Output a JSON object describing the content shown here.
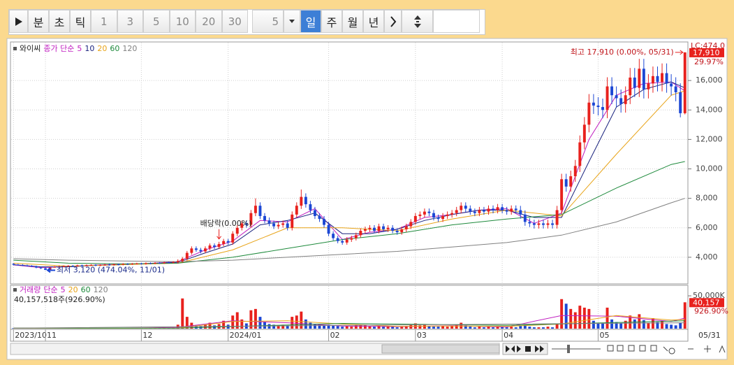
{
  "toolbar": {
    "buttons": [
      "분",
      "초",
      "틱",
      "1",
      "3",
      "5",
      "10",
      "20",
      "30"
    ],
    "period_value": "5",
    "period_buttons": [
      "일",
      "주",
      "월",
      "년"
    ]
  },
  "chart_data": {
    "type": "candlestick",
    "name": "와이씨",
    "ma_prefix": "종가 단순",
    "categories": [
      "2023/10",
      null,
      null,
      null,
      null,
      null,
      null,
      "11",
      null,
      null,
      null,
      null,
      null,
      null,
      null,
      null,
      null,
      null,
      null,
      null,
      null,
      null,
      null,
      null,
      null,
      null,
      null,
      null,
      "12",
      null,
      null,
      null,
      null,
      null,
      null,
      null,
      null,
      null,
      null,
      null,
      null,
      null,
      null,
      null,
      null,
      null,
      null,
      "2024/01",
      null,
      null,
      null,
      null,
      null,
      null,
      null,
      null,
      null,
      null,
      null,
      null,
      null,
      null,
      null,
      null,
      null,
      null,
      null,
      null,
      null,
      "02",
      null,
      null,
      null,
      null,
      null,
      null,
      null,
      null,
      null,
      null,
      null,
      null,
      null,
      null,
      null,
      null,
      null,
      null,
      "03",
      null,
      null,
      null,
      null,
      null,
      null,
      null,
      null,
      null,
      null,
      null,
      null,
      null,
      null,
      null,
      null,
      null,
      null,
      "04",
      null,
      null,
      null,
      null,
      null,
      null,
      null,
      null,
      null,
      null,
      null,
      null,
      null,
      null,
      null,
      null,
      null,
      null,
      null,
      null,
      "05",
      null,
      null,
      null,
      null,
      null,
      null,
      null,
      null,
      null,
      null,
      null,
      null,
      null,
      null,
      null,
      null,
      null,
      null,
      "05/31"
    ],
    "open": [
      3550,
      3500,
      3480,
      3450,
      3420,
      3380,
      3300,
      3250,
      3150,
      3300,
      3350,
      3380,
      3400,
      3420,
      3400,
      3450,
      3430,
      3460,
      3480,
      3450,
      3470,
      3500,
      3480,
      3520,
      3500,
      3550,
      3530,
      3560,
      3580,
      3550,
      3600,
      3580,
      3620,
      3600,
      3650,
      3630,
      3680,
      3750,
      3900,
      4300,
      4600,
      4500,
      4400,
      4600,
      4800,
      4700,
      4900,
      5100,
      5000,
      5600,
      6000,
      6300,
      6200,
      7000,
      7500,
      6800,
      6500,
      6300,
      6100,
      6200,
      6300,
      6000,
      6900,
      7500,
      8100,
      7600,
      7200,
      6800,
      6600,
      6200,
      5600,
      5300,
      5100,
      5000,
      5200,
      5300,
      5500,
      5800,
      5900,
      6000,
      5800,
      6100,
      5900,
      6000,
      5800,
      5700,
      5900,
      6100,
      6400,
      6800,
      6900,
      7100,
      7000,
      6700,
      6600,
      6800,
      6900,
      7000,
      7200,
      7500,
      7300,
      7100,
      7000,
      7200,
      7100,
      7300,
      7200,
      7400,
      7200,
      7100,
      7300,
      7200,
      6900,
      6400,
      6300,
      6200,
      6300,
      6200,
      6300,
      6200,
      7200,
      9300,
      8800,
      9500,
      10200,
      11800,
      13000,
      14500,
      14300,
      14200,
      14000,
      15600,
      15000,
      14800,
      14400,
      15000,
      16200,
      15500,
      16800,
      15400,
      15800,
      16300,
      15900,
      16500,
      15800,
      15600,
      15200,
      13780
    ],
    "high": [
      3600,
      3550,
      3530,
      3500,
      3470,
      3430,
      3350,
      3300,
      3350,
      3400,
      3430,
      3450,
      3470,
      3470,
      3500,
      3500,
      3510,
      3530,
      3530,
      3520,
      3550,
      3550,
      3570,
      3570,
      3600,
      3600,
      3610,
      3630,
      3630,
      3650,
      3650,
      3670,
      3670,
      3700,
      3700,
      3730,
      3860,
      4020,
      4430,
      4740,
      4740,
      4640,
      4740,
      4940,
      4940,
      5050,
      5250,
      5250,
      5770,
      6180,
      6490,
      6490,
      7210,
      8000,
      7730,
      7000,
      6700,
      6490,
      6390,
      6490,
      6490,
      7110,
      7730,
      8600,
      8340,
      7830,
      7420,
      7000,
      6800,
      6390,
      5770,
      5460,
      5250,
      5360,
      5460,
      5670,
      5970,
      6080,
      6180,
      6180,
      6280,
      6280,
      6180,
      6180,
      5970,
      6080,
      6280,
      6590,
      7000,
      7110,
      7310,
      7310,
      7210,
      6900,
      7000,
      7110,
      7210,
      7420,
      7730,
      7730,
      7520,
      7310,
      7420,
      7420,
      7520,
      7520,
      7620,
      7620,
      7420,
      7520,
      7520,
      7490,
      7180,
      6660,
      6550,
      6550,
      6550,
      6550,
      6550,
      7490,
      9670,
      9670,
      9880,
      10610,
      12270,
      13520,
      15080,
      15080,
      14870,
      14770,
      16220,
      16220,
      15600,
      15390,
      15600,
      16850,
      16850,
      17470,
      17470,
      16430,
      16950,
      16950,
      17160,
      17160,
      16430,
      16220,
      15810,
      17910
    ],
    "low": [
      3450,
      3430,
      3400,
      3370,
      3330,
      3250,
      3200,
      3120,
      3130,
      3300,
      3300,
      3330,
      3350,
      3350,
      3350,
      3380,
      3380,
      3410,
      3400,
      3400,
      3420,
      3430,
      3430,
      3450,
      3450,
      3480,
      3480,
      3510,
      3500,
      3500,
      3530,
      3530,
      3550,
      3550,
      3580,
      3580,
      3570,
      3640,
      3780,
      4170,
      4370,
      4270,
      4270,
      4460,
      4560,
      4560,
      4750,
      4850,
      4850,
      5430,
      5820,
      6010,
      6010,
      6790,
      6600,
      6310,
      6110,
      5920,
      5920,
      6010,
      5820,
      5820,
      6690,
      7280,
      7370,
      6980,
      6600,
      6400,
      6010,
      5430,
      5140,
      4950,
      4850,
      4850,
      5040,
      5140,
      5340,
      5630,
      5720,
      5630,
      5630,
      5720,
      5720,
      5630,
      5530,
      5530,
      5720,
      5920,
      6210,
      6600,
      6690,
      6790,
      6500,
      6400,
      6400,
      6600,
      6690,
      6790,
      6980,
      7080,
      6890,
      6790,
      6790,
      6890,
      6890,
      6980,
      6980,
      6980,
      6890,
      6890,
      6980,
      6620,
      6140,
      6050,
      5950,
      5950,
      5950,
      5950,
      5950,
      5950,
      6910,
      8450,
      8450,
      9120,
      9790,
      11330,
      12480,
      13730,
      13630,
      13440,
      13440,
      14400,
      14210,
      13820,
      13820,
      14400,
      14880,
      14880,
      14780,
      14780,
      15170,
      15260,
      15260,
      15170,
      14980,
      14590,
      13500,
      13700
    ],
    "close": [
      3500,
      3480,
      3450,
      3420,
      3380,
      3300,
      3250,
      3150,
      3300,
      3350,
      3380,
      3400,
      3420,
      3400,
      3450,
      3430,
      3460,
      3480,
      3450,
      3470,
      3500,
      3480,
      3520,
      3500,
      3550,
      3530,
      3560,
      3580,
      3550,
      3600,
      3580,
      3620,
      3600,
      3650,
      3630,
      3680,
      3750,
      3900,
      4300,
      4600,
      4500,
      4400,
      4600,
      4800,
      4700,
      4900,
      5100,
      5000,
      5600,
      6000,
      6300,
      6200,
      7000,
      7500,
      6800,
      6500,
      6300,
      6100,
      6200,
      6300,
      6000,
      6900,
      7500,
      8100,
      7600,
      7200,
      6800,
      6600,
      6200,
      5600,
      5300,
      5100,
      5000,
      5200,
      5300,
      5500,
      5800,
      5900,
      6000,
      5800,
      6100,
      5900,
      6000,
      5800,
      5700,
      5900,
      6100,
      6400,
      6800,
      6900,
      7100,
      7000,
      6700,
      6600,
      6800,
      6900,
      7000,
      7200,
      7500,
      7300,
      7100,
      7000,
      7200,
      7100,
      7300,
      7200,
      7400,
      7200,
      7100,
      7300,
      7200,
      6900,
      6400,
      6300,
      6200,
      6300,
      6200,
      6300,
      6200,
      7200,
      9300,
      8800,
      9500,
      10200,
      11800,
      13000,
      14500,
      14300,
      14200,
      14000,
      15600,
      15000,
      14800,
      14400,
      15000,
      16200,
      15500,
      16800,
      15400,
      15800,
      16300,
      15900,
      16500,
      15800,
      15600,
      15200,
      13780,
      17910
    ],
    "volume": [
      800,
      600,
      500,
      700,
      500,
      900,
      600,
      1200,
      900,
      500,
      400,
      600,
      500,
      400,
      500,
      600,
      400,
      500,
      700,
      500,
      400,
      600,
      500,
      700,
      500,
      400,
      600,
      800,
      500,
      400,
      700,
      600,
      500,
      900,
      700,
      1200,
      6000,
      46000,
      18000,
      9000,
      5000,
      4000,
      6000,
      9000,
      5000,
      7000,
      12000,
      6000,
      20000,
      25000,
      14000,
      8000,
      28000,
      30000,
      18000,
      10000,
      7000,
      6000,
      5000,
      6000,
      5000,
      18000,
      20000,
      26000,
      14000,
      9000,
      7000,
      6000,
      5000,
      6000,
      5000,
      4000,
      3000,
      4000,
      3000,
      5000,
      6000,
      5000,
      4000,
      3000,
      5000,
      3000,
      4000,
      3000,
      2000,
      3000,
      4000,
      6000,
      8000,
      5000,
      7000,
      4000,
      3000,
      3000,
      4000,
      3000,
      4000,
      6000,
      9000,
      5000,
      3000,
      2000,
      3000,
      2000,
      3000,
      2000,
      4000,
      3000,
      2000,
      3000,
      2000,
      4000,
      6000,
      3000,
      2000,
      2000,
      2000,
      3000,
      2000,
      8000,
      45000,
      38000,
      30000,
      25000,
      35000,
      32000,
      30000,
      12000,
      9000,
      8000,
      32000,
      14000,
      10000,
      8000,
      12000,
      20000,
      14000,
      22000,
      13000,
      9000,
      16000,
      10000,
      12000,
      7000,
      6000,
      5000,
      9000,
      40157
    ],
    "up_color": "#e8211d",
    "down_color": "#1c47d4",
    "series": [
      {
        "name": "5",
        "color": "#c020c0",
        "x": [
          0,
          6,
          12,
          18,
          24,
          30,
          36,
          42,
          48,
          54,
          60,
          66,
          72,
          78,
          84,
          90,
          96,
          102,
          108,
          114,
          120,
          126,
          132,
          138,
          144,
          147
        ],
        "values": [
          3480,
          3300,
          3380,
          3470,
          3530,
          3590,
          3700,
          4500,
          5100,
          6500,
          6400,
          7300,
          5200,
          5700,
          5900,
          6700,
          6900,
          7200,
          7300,
          6300,
          7000,
          12000,
          15000,
          15800,
          15900,
          15300
        ]
      },
      {
        "name": "10",
        "color": "#1a237e",
        "x": [
          0,
          6,
          12,
          18,
          24,
          30,
          36,
          42,
          48,
          54,
          60,
          66,
          72,
          78,
          84,
          90,
          96,
          102,
          108,
          114,
          120,
          126,
          132,
          138,
          144,
          147
        ],
        "values": [
          3500,
          3350,
          3350,
          3450,
          3500,
          3580,
          3650,
          4300,
          4900,
          6200,
          6500,
          7000,
          5600,
          5600,
          5900,
          6500,
          6900,
          7200,
          7200,
          6700,
          6700,
          10500,
          14200,
          15400,
          15900,
          15500
        ]
      },
      {
        "name": "20",
        "color": "#e8a317",
        "x": [
          0,
          12,
          24,
          36,
          48,
          60,
          72,
          84,
          96,
          108,
          120,
          132,
          144,
          147
        ],
        "values": [
          3600,
          3400,
          3500,
          3600,
          4500,
          6000,
          6000,
          5800,
          6600,
          7200,
          6800,
          11000,
          15000,
          15300
        ]
      },
      {
        "name": "60",
        "color": "#1e8a3c",
        "x": [
          0,
          12,
          24,
          36,
          48,
          60,
          72,
          84,
          96,
          108,
          120,
          132,
          144,
          147
        ],
        "values": [
          3800,
          3600,
          3550,
          3600,
          4000,
          4600,
          5200,
          5600,
          6200,
          6600,
          6900,
          8700,
          10300,
          10500
        ]
      },
      {
        "name": "120",
        "color": "#808080",
        "x": [
          0,
          12,
          24,
          36,
          48,
          60,
          72,
          84,
          96,
          108,
          120,
          132,
          144,
          147
        ],
        "values": [
          3900,
          3800,
          3750,
          3700,
          3800,
          4000,
          4200,
          4400,
          4700,
          5000,
          5500,
          6400,
          7700,
          8000
        ]
      }
    ],
    "ylim": [
      2240,
      18570
    ],
    "yticks": [
      {
        "value": 4000,
        "label": "4,000"
      },
      {
        "value": 6000,
        "label": "6,000"
      },
      {
        "value": 8000,
        "label": "8,000"
      },
      {
        "value": 10000,
        "label": "10,000"
      },
      {
        "value": 12000,
        "label": "12,000"
      },
      {
        "value": 14000,
        "label": "14,000"
      },
      {
        "value": 16000,
        "label": "16,000"
      }
    ],
    "grid": true,
    "lc_label": "LC:474.0",
    "last_close_label": "17,910",
    "last_change_label": "29.97%",
    "annotations": {
      "high": {
        "text": "최고 17,910 (0.00%, 05/31)",
        "index": 147
      },
      "low": {
        "text": "최저 3,120 (474.04%, 11/01)",
        "index": 7
      },
      "ex_dividend": {
        "text": "배당락(0.00%)",
        "index": 45
      }
    },
    "volume_name": "거래량",
    "volume_prefix": "단순",
    "volume_summary": "40,157,518주(926.90%)",
    "volume_ylim": [
      0,
      65000
    ],
    "volume_yticks": [
      {
        "value": 50000,
        "label": "50,000K"
      }
    ],
    "last_volume_label": "40,157",
    "volume_ratio_label": "926.90%",
    "volume_series": [
      {
        "name": "5",
        "color": "#c020c0",
        "x": [
          0,
          12,
          24,
          36,
          48,
          60,
          72,
          84,
          96,
          108,
          120,
          132,
          144,
          147
        ],
        "values": [
          600,
          500,
          550,
          2000,
          12000,
          9000,
          4000,
          3000,
          4500,
          2500,
          20000,
          19000,
          11000,
          16000
        ]
      },
      {
        "name": "20",
        "color": "#e8a317",
        "x": [
          0,
          12,
          24,
          36,
          48,
          60,
          72,
          84,
          96,
          108,
          120,
          132,
          144,
          147
        ],
        "values": [
          650,
          600,
          550,
          700,
          11000,
          12000,
          7000,
          3500,
          4000,
          3500,
          7000,
          20000,
          13000,
          14000
        ]
      },
      {
        "name": "60",
        "color": "#1e8a3c",
        "x": [
          0,
          36,
          72,
          108,
          147
        ],
        "values": [
          700,
          800,
          8000,
          5000,
          12000
        ]
      },
      {
        "name": "120",
        "color": "#808080",
        "x": [
          0,
          72,
          147
        ],
        "values": [
          700,
          5000,
          9000
        ]
      }
    ]
  }
}
